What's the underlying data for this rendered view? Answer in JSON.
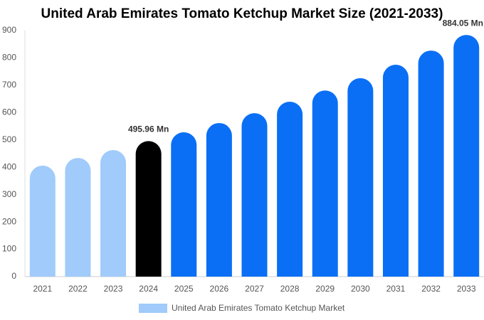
{
  "chart_data": {
    "type": "bar",
    "title": "United Arab Emirates Tomato Ketchup Market Size (2021-2033)",
    "categories": [
      "2021",
      "2022",
      "2023",
      "2024",
      "2025",
      "2026",
      "2027",
      "2028",
      "2029",
      "2030",
      "2031",
      "2032",
      "2033"
    ],
    "series": [
      {
        "name": "United Arab Emirates Tomato Ketchup Market",
        "color": "#a0cbfa",
        "values": [
          406,
          434,
          463,
          495.96,
          528,
          562,
          598,
          640,
          681,
          726,
          775,
          827,
          884.05
        ],
        "value_labels": [
          null,
          null,
          null,
          "495.96 Mn",
          null,
          null,
          null,
          null,
          null,
          null,
          null,
          null,
          "884.05 Mn"
        ],
        "colors": [
          "#a0cbfa",
          "#a0cbfa",
          "#a0cbfa",
          "#000000",
          "#0a6ff5",
          "#0a6ff5",
          "#0a6ff5",
          "#0a6ff5",
          "#0a6ff5",
          "#0a6ff5",
          "#0a6ff5",
          "#0a6ff5",
          "#0a6ff5"
        ]
      }
    ],
    "ylim": [
      0,
      900
    ],
    "yticks": [
      0,
      100,
      200,
      300,
      400,
      500,
      600,
      700,
      800,
      900
    ],
    "grid": false
  }
}
